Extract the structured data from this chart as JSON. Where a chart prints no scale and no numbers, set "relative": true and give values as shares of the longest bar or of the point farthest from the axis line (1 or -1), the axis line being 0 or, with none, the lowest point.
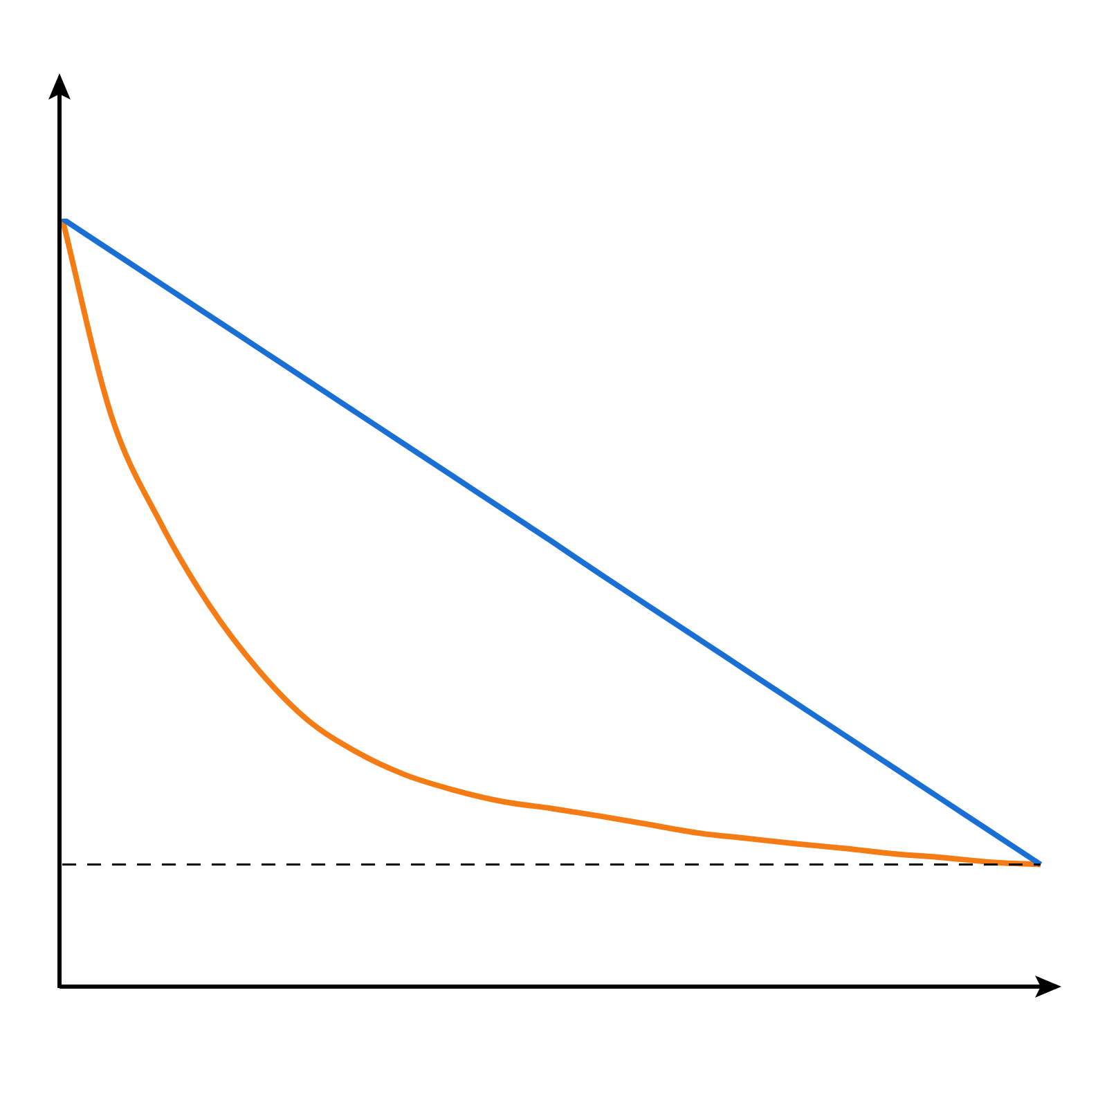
{
  "chart_data": {
    "type": "line",
    "relative": true,
    "marker": "none",
    "legend": false,
    "categories": [
      null,
      null,
      null,
      null,
      null,
      null,
      null,
      null,
      null,
      null,
      null,
      null,
      null,
      null,
      null,
      null,
      null,
      null,
      null,
      null,
      null
    ],
    "series": [
      {
        "color": "#1a6fd4",
        "values": [
          1,
          0.958,
          0.916,
          0.874,
          0.832,
          0.79,
          0.748,
          0.706,
          0.664,
          0.622,
          0.58,
          0.537,
          0.495,
          0.453,
          0.411,
          0.369,
          0.327,
          0.285,
          0.243,
          0.201,
          0.159
        ]
      },
      {
        "color": "#f57c14",
        "values": [
          1,
          0.744,
          0.605,
          0.497,
          0.413,
          0.348,
          0.306,
          0.276,
          0.256,
          0.241,
          0.232,
          0.222,
          0.211,
          0.2,
          0.193,
          0.186,
          0.18,
          0.173,
          0.168,
          0.162,
          0.159
        ]
      }
    ],
    "ref_lines": [
      {
        "axis": "y",
        "value": 0.159,
        "color": "#000000",
        "line_style": "dashed"
      }
    ]
  }
}
